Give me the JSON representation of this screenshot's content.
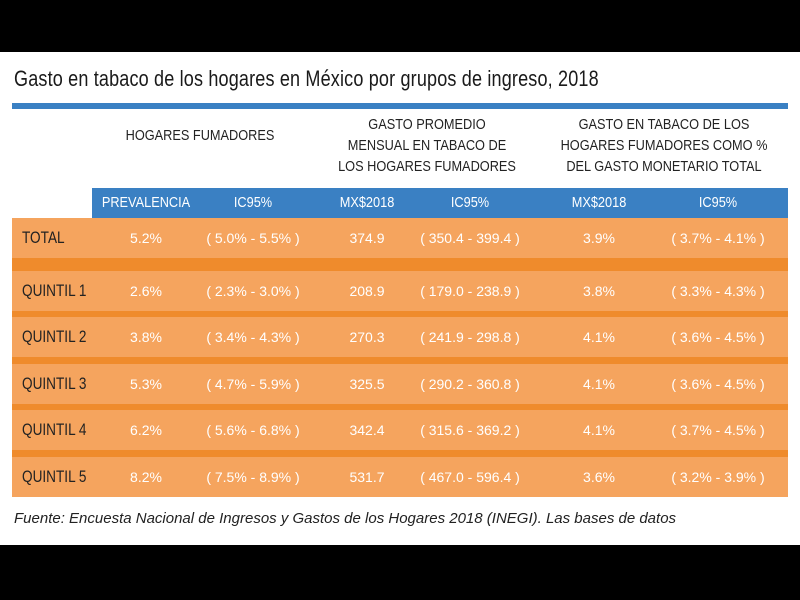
{
  "title": "Gasto en tabaco de los hogares en México por grupos de ingreso, 2018",
  "group_headers": [
    "HOGARES FUMADORES",
    "GASTO PROMEDIO MENSUAL EN TABACO DE LOS HOGARES FUMADORES",
    "GASTO EN TABACO DE LOS HOGARES FUMADORES COMO % DEL GASTO MONETARIO TOTAL"
  ],
  "sub_headers": [
    "PREVALENCIA",
    "IC95%",
    "MX$2018",
    "IC95%",
    "MX$2018",
    "IC95%"
  ],
  "rows": [
    {
      "label": "TOTAL",
      "values": [
        "5.2%",
        "( 5.0% - 5.5% )",
        "374.9",
        "( 350.4 - 399.4 )",
        "3.9%",
        "( 3.7% - 4.1% )"
      ]
    },
    {
      "label": "QUINTIL 1",
      "values": [
        "2.6%",
        "( 2.3% - 3.0% )",
        "208.9",
        "( 179.0 - 238.9 )",
        "3.8%",
        "( 3.3% - 4.3% )"
      ]
    },
    {
      "label": "QUINTIL 2",
      "values": [
        "3.8%",
        "( 3.4% - 4.3% )",
        "270.3",
        "( 241.9 - 298.8 )",
        "4.1%",
        "( 3.6% - 4.5% )"
      ]
    },
    {
      "label": "QUINTIL 3",
      "values": [
        "5.3%",
        "( 4.7% - 5.9% )",
        "325.5",
        "( 290.2 - 360.8 )",
        "4.1%",
        "( 3.6% - 4.5% )"
      ]
    },
    {
      "label": "QUINTIL 4",
      "values": [
        "6.2%",
        "( 5.6% - 6.8% )",
        "342.4",
        "( 315.6 - 369.2 )",
        "4.1%",
        "( 3.7% - 4.5% )"
      ]
    },
    {
      "label": "QUINTIL 5",
      "values": [
        "8.2%",
        "( 7.5% - 8.9% )",
        "531.7",
        "( 467.0 - 596.4 )",
        "3.6%",
        "( 3.2% - 3.9% )"
      ]
    }
  ],
  "footnote": "Fuente: Encuesta Nacional de Ingresos y Gastos de los Hogares 2018 (INEGI). Las bases de datos",
  "colors": {
    "header_blue": "#3a80c3",
    "row_orange": "#f5a45e",
    "separator_orange": "#ef8b2c"
  }
}
